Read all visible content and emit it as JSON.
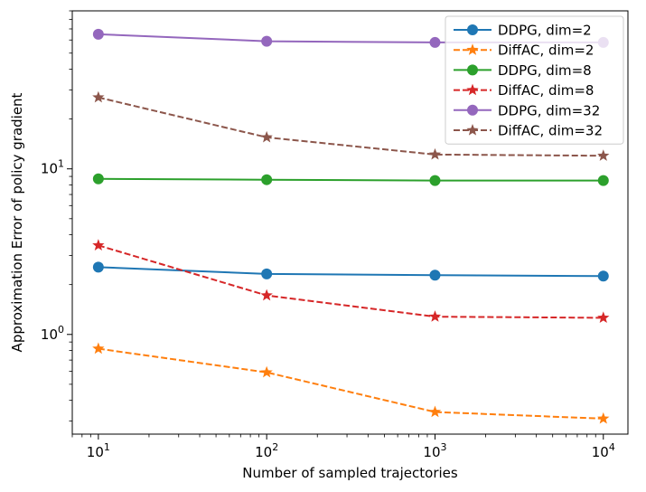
{
  "chart_data": {
    "type": "line",
    "title": "",
    "xlabel": "Number of sampled trajectories",
    "ylabel": "Approximation Error of policy gradient",
    "xscale": "log",
    "yscale": "log",
    "x": [
      10,
      100,
      1000,
      10000
    ],
    "xlim": [
      7,
      14000
    ],
    "ylim": [
      0.25,
      90
    ],
    "x_tick_labels": [
      {
        "base": "10",
        "exp": "1"
      },
      {
        "base": "10",
        "exp": "2"
      },
      {
        "base": "10",
        "exp": "3"
      },
      {
        "base": "10",
        "exp": "4"
      }
    ],
    "y_tick_labels": [
      {
        "value": 1,
        "base": "10",
        "exp": "0"
      },
      {
        "value": 10,
        "base": "10",
        "exp": "1"
      }
    ],
    "legend_position": "top-right",
    "series": [
      {
        "name": "DDPG, dim=2",
        "values": [
          2.55,
          2.32,
          2.28,
          2.25
        ],
        "color": "#1f77b4",
        "style": "solid",
        "marker": "circle"
      },
      {
        "name": "DiffAC, dim=2",
        "values": [
          0.82,
          0.59,
          0.34,
          0.31
        ],
        "color": "#ff7f0e",
        "style": "dashed",
        "marker": "star"
      },
      {
        "name": "DDPG, dim=8",
        "values": [
          8.7,
          8.6,
          8.5,
          8.5
        ],
        "color": "#2ca02c",
        "style": "solid",
        "marker": "circle"
      },
      {
        "name": "DiffAC, dim=8",
        "values": [
          3.45,
          1.72,
          1.28,
          1.26
        ],
        "color": "#d62728",
        "style": "dashed",
        "marker": "star"
      },
      {
        "name": "DDPG, dim=32",
        "values": [
          65,
          59,
          58,
          58
        ],
        "color": "#9467bd",
        "style": "solid",
        "marker": "circle"
      },
      {
        "name": "DiffAC, dim=32",
        "values": [
          27,
          15.5,
          12.2,
          12.0
        ],
        "color": "#8c564b",
        "style": "dashed",
        "marker": "star"
      }
    ]
  }
}
